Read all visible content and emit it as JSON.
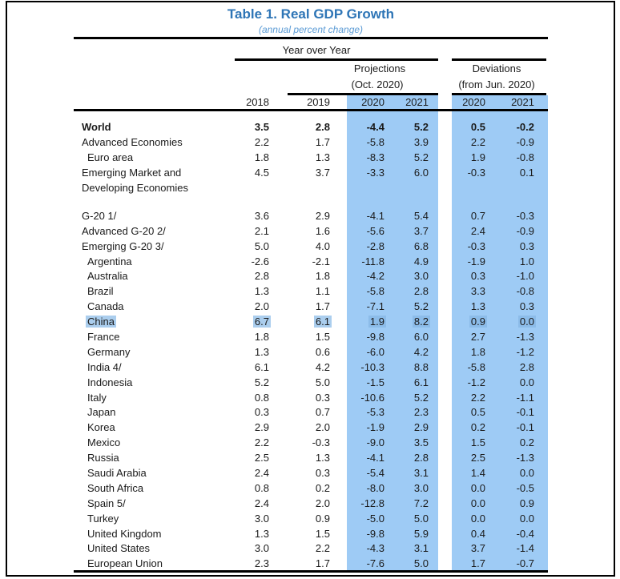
{
  "title": "Table 1. Real GDP Growth",
  "subtitle": "(annual percent change)",
  "header": {
    "group_top": "Year over Year",
    "projections_line1": "Projections",
    "projections_line2": "(Oct. 2020)",
    "deviations_line1": "Deviations",
    "deviations_line2": "(from Jun. 2020)",
    "years": [
      "2018",
      "2019",
      "2020",
      "2021",
      "2020",
      "2021"
    ]
  },
  "colors": {
    "title_blue": "#2E75B6",
    "subtitle_blue": "#5B9BD5",
    "column_blue": "#9ECBF5",
    "selection_on_white": "#ABCEEE",
    "selection_on_blue": "#8CBCE9",
    "line_black": "#000000",
    "text": "#1a1a1a"
  },
  "rows": [
    {
      "label": "World",
      "bold": true,
      "values": [
        "3.5",
        "2.8",
        "-4.4",
        "5.2",
        "0.5",
        "-0.2"
      ]
    },
    {
      "label": "Advanced Economies",
      "values": [
        "2.2",
        "1.7",
        "-5.8",
        "3.9",
        "2.2",
        "-0.9"
      ]
    },
    {
      "label": "Euro area",
      "indent": true,
      "values": [
        "1.8",
        "1.3",
        "-8.3",
        "5.2",
        "1.9",
        "-0.8"
      ]
    },
    {
      "label": "Emerging Market and Developing Economies",
      "lines": [
        "Emerging Market and",
        "Developing Economies"
      ],
      "tall": true,
      "values": [
        "4.5",
        "3.7",
        "-3.3",
        "6.0",
        "-0.3",
        "0.1"
      ]
    },
    {
      "type": "spacer"
    },
    {
      "label": "G-20 1/",
      "values": [
        "3.6",
        "2.9",
        "-4.1",
        "5.4",
        "0.7",
        "-0.3"
      ]
    },
    {
      "label": "Advanced G-20 2/",
      "values": [
        "2.1",
        "1.6",
        "-5.6",
        "3.7",
        "2.4",
        "-0.9"
      ]
    },
    {
      "label": "Emerging G-20 3/",
      "values": [
        "5.0",
        "4.0",
        "-2.8",
        "6.8",
        "-0.3",
        "0.3"
      ]
    },
    {
      "label": "Argentina",
      "indent": true,
      "values": [
        "-2.6",
        "-2.1",
        "-11.8",
        "4.9",
        "-1.9",
        "1.0"
      ]
    },
    {
      "label": "Australia",
      "indent": true,
      "values": [
        "2.8",
        "1.8",
        "-4.2",
        "3.0",
        "0.3",
        "-1.0"
      ]
    },
    {
      "label": "Brazil",
      "indent": true,
      "values": [
        "1.3",
        "1.1",
        "-5.8",
        "2.8",
        "3.3",
        "-0.8"
      ]
    },
    {
      "label": "Canada",
      "indent": true,
      "values": [
        "2.0",
        "1.7",
        "-7.1",
        "5.2",
        "1.3",
        "0.3"
      ]
    },
    {
      "label": "China",
      "indent": true,
      "selected": true,
      "values": [
        "6.7",
        "6.1",
        "1.9",
        "8.2",
        "0.9",
        "0.0"
      ]
    },
    {
      "label": "France",
      "indent": true,
      "values": [
        "1.8",
        "1.5",
        "-9.8",
        "6.0",
        "2.7",
        "-1.3"
      ]
    },
    {
      "label": "Germany",
      "indent": true,
      "values": [
        "1.3",
        "0.6",
        "-6.0",
        "4.2",
        "1.8",
        "-1.2"
      ]
    },
    {
      "label": "India 4/",
      "indent": true,
      "values": [
        "6.1",
        "4.2",
        "-10.3",
        "8.8",
        "-5.8",
        "2.8"
      ]
    },
    {
      "label": "Indonesia",
      "indent": true,
      "values": [
        "5.2",
        "5.0",
        "-1.5",
        "6.1",
        "-1.2",
        "0.0"
      ]
    },
    {
      "label": "Italy",
      "indent": true,
      "values": [
        "0.8",
        "0.3",
        "-10.6",
        "5.2",
        "2.2",
        "-1.1"
      ]
    },
    {
      "label": "Japan",
      "indent": true,
      "values": [
        "0.3",
        "0.7",
        "-5.3",
        "2.3",
        "0.5",
        "-0.1"
      ]
    },
    {
      "label": "Korea",
      "indent": true,
      "values": [
        "2.9",
        "2.0",
        "-1.9",
        "2.9",
        "0.2",
        "-0.1"
      ]
    },
    {
      "label": "Mexico",
      "indent": true,
      "values": [
        "2.2",
        "-0.3",
        "-9.0",
        "3.5",
        "1.5",
        "0.2"
      ]
    },
    {
      "label": "Russia",
      "indent": true,
      "values": [
        "2.5",
        "1.3",
        "-4.1",
        "2.8",
        "2.5",
        "-1.3"
      ]
    },
    {
      "label": "Saudi Arabia",
      "indent": true,
      "values": [
        "2.4",
        "0.3",
        "-5.4",
        "3.1",
        "1.4",
        "0.0"
      ]
    },
    {
      "label": "South Africa",
      "indent": true,
      "values": [
        "0.8",
        "0.2",
        "-8.0",
        "3.0",
        "0.0",
        "-0.5"
      ]
    },
    {
      "label": "Spain 5/",
      "indent": true,
      "values": [
        "2.4",
        "2.0",
        "-12.8",
        "7.2",
        "0.0",
        "0.9"
      ]
    },
    {
      "label": "Turkey",
      "indent": true,
      "values": [
        "3.0",
        "0.9",
        "-5.0",
        "5.0",
        "0.0",
        "0.0"
      ]
    },
    {
      "label": "United Kingdom",
      "indent": true,
      "values": [
        "1.3",
        "1.5",
        "-9.8",
        "5.9",
        "0.4",
        "-0.4"
      ]
    },
    {
      "label": "United States",
      "indent": true,
      "values": [
        "3.0",
        "2.2",
        "-4.3",
        "3.1",
        "3.7",
        "-1.4"
      ]
    },
    {
      "label": "European Union",
      "indent": true,
      "values": [
        "2.3",
        "1.7",
        "-7.6",
        "5.0",
        "1.7",
        "-0.7"
      ]
    }
  ]
}
